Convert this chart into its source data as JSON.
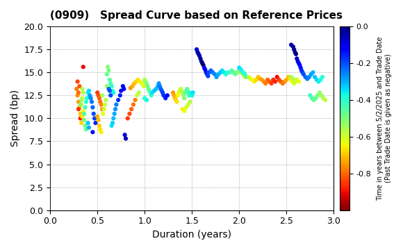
{
  "title": "(0909)   Spread Curve based on Reference Prices",
  "xlabel": "Duration (years)",
  "ylabel": "Spread (bp)",
  "colorbar_label": "Time in years between 5/2/2025 and Trade Date\n(Past Trade Date is given as negative)",
  "xlim": [
    0.0,
    3.0
  ],
  "ylim": [
    0.0,
    20.0
  ],
  "yticks": [
    0.0,
    2.5,
    5.0,
    7.5,
    10.0,
    12.5,
    15.0,
    17.5,
    20.0
  ],
  "xticks": [
    0.0,
    0.5,
    1.0,
    1.5,
    2.0,
    2.5,
    3.0
  ],
  "cmap": "jet_r",
  "vmin": -1.0,
  "vmax": 0.0,
  "scatter_size": 12,
  "points": [
    [
      0.28,
      13.2,
      -0.78
    ],
    [
      0.29,
      12.5,
      -0.76
    ],
    [
      0.3,
      11.8,
      -0.74
    ],
    [
      0.31,
      11.2,
      -0.72
    ],
    [
      0.3,
      12.8,
      -0.8
    ],
    [
      0.32,
      10.5,
      -0.7
    ],
    [
      0.31,
      13.5,
      -0.82
    ],
    [
      0.29,
      14.0,
      -0.84
    ],
    [
      0.3,
      11.0,
      -0.86
    ],
    [
      0.32,
      10.0,
      -0.88
    ],
    [
      0.33,
      9.5,
      -0.68
    ],
    [
      0.34,
      10.2,
      -0.66
    ],
    [
      0.35,
      10.8,
      -0.64
    ],
    [
      0.33,
      11.5,
      -0.62
    ],
    [
      0.34,
      12.2,
      -0.6
    ],
    [
      0.35,
      12.8,
      -0.58
    ],
    [
      0.34,
      13.2,
      -0.56
    ],
    [
      0.33,
      12.0,
      -0.54
    ],
    [
      0.32,
      11.5,
      -0.52
    ],
    [
      0.35,
      15.6,
      -0.9
    ],
    [
      0.36,
      9.8,
      -0.5
    ],
    [
      0.37,
      9.2,
      -0.48
    ],
    [
      0.38,
      8.8,
      -0.46
    ],
    [
      0.36,
      10.5,
      -0.44
    ],
    [
      0.37,
      11.2,
      -0.42
    ],
    [
      0.38,
      11.8,
      -0.4
    ],
    [
      0.39,
      12.2,
      -0.38
    ],
    [
      0.4,
      12.8,
      -0.36
    ],
    [
      0.41,
      13.0,
      -0.34
    ],
    [
      0.4,
      9.5,
      -0.32
    ],
    [
      0.41,
      9.0,
      -0.3
    ],
    [
      0.42,
      12.5,
      -0.28
    ],
    [
      0.43,
      12.2,
      -0.26
    ],
    [
      0.44,
      11.8,
      -0.24
    ],
    [
      0.45,
      11.2,
      -0.22
    ],
    [
      0.46,
      10.5,
      -0.2
    ],
    [
      0.47,
      10.0,
      -0.18
    ],
    [
      0.48,
      9.5,
      -0.16
    ],
    [
      0.45,
      8.5,
      -0.14
    ],
    [
      0.5,
      12.8,
      -0.85
    ],
    [
      0.51,
      12.5,
      -0.83
    ],
    [
      0.52,
      12.2,
      -0.81
    ],
    [
      0.53,
      11.8,
      -0.79
    ],
    [
      0.54,
      11.5,
      -0.77
    ],
    [
      0.55,
      11.0,
      -0.75
    ],
    [
      0.5,
      10.2,
      -0.73
    ],
    [
      0.51,
      9.8,
      -0.71
    ],
    [
      0.52,
      9.2,
      -0.69
    ],
    [
      0.53,
      8.8,
      -0.67
    ],
    [
      0.54,
      8.5,
      -0.65
    ],
    [
      0.56,
      10.5,
      -0.63
    ],
    [
      0.57,
      11.0,
      -0.61
    ],
    [
      0.58,
      11.5,
      -0.59
    ],
    [
      0.59,
      12.0,
      -0.57
    ],
    [
      0.55,
      12.5,
      -0.55
    ],
    [
      0.6,
      13.5,
      -0.53
    ],
    [
      0.61,
      15.6,
      -0.51
    ],
    [
      0.62,
      15.2,
      -0.49
    ],
    [
      0.6,
      14.8,
      -0.47
    ],
    [
      0.63,
      14.2,
      -0.45
    ],
    [
      0.64,
      13.8,
      -0.43
    ],
    [
      0.65,
      13.5,
      -0.41
    ],
    [
      0.66,
      13.0,
      -0.39
    ],
    [
      0.67,
      12.8,
      -0.37
    ],
    [
      0.65,
      9.2,
      -0.35
    ],
    [
      0.66,
      9.5,
      -0.33
    ],
    [
      0.67,
      10.0,
      -0.31
    ],
    [
      0.68,
      10.5,
      -0.29
    ],
    [
      0.69,
      11.0,
      -0.27
    ],
    [
      0.62,
      13.2,
      -0.23
    ],
    [
      0.63,
      13.0,
      -0.21
    ],
    [
      0.64,
      12.5,
      -0.19
    ],
    [
      0.7,
      11.5,
      -0.25
    ],
    [
      0.72,
      12.0,
      -0.17
    ],
    [
      0.74,
      12.5,
      -0.15
    ],
    [
      0.75,
      13.0,
      -0.13
    ],
    [
      0.77,
      13.5,
      -0.11
    ],
    [
      0.78,
      13.2,
      -0.09
    ],
    [
      0.79,
      8.2,
      -0.07
    ],
    [
      0.8,
      7.8,
      -0.05
    ],
    [
      0.82,
      10.0,
      -0.85
    ],
    [
      0.84,
      10.5,
      -0.83
    ],
    [
      0.86,
      11.0,
      -0.81
    ],
    [
      0.88,
      11.5,
      -0.79
    ],
    [
      0.9,
      12.0,
      -0.77
    ],
    [
      0.85,
      13.3,
      -0.75
    ],
    [
      0.87,
      13.5,
      -0.73
    ],
    [
      0.89,
      13.8,
      -0.71
    ],
    [
      0.91,
      14.0,
      -0.69
    ],
    [
      0.93,
      14.2,
      -0.67
    ],
    [
      0.95,
      14.0,
      -0.65
    ],
    [
      0.97,
      13.8,
      -0.63
    ],
    [
      0.99,
      13.5,
      -0.61
    ],
    [
      0.92,
      12.5,
      -0.59
    ],
    [
      0.94,
      12.8,
      -0.57
    ],
    [
      1.0,
      14.2,
      -0.55
    ],
    [
      1.01,
      14.0,
      -0.53
    ],
    [
      1.02,
      13.8,
      -0.51
    ],
    [
      1.03,
      13.5,
      -0.49
    ],
    [
      1.04,
      13.2,
      -0.47
    ],
    [
      1.05,
      13.0,
      -0.45
    ],
    [
      1.06,
      12.8,
      -0.43
    ],
    [
      1.07,
      12.5,
      -0.41
    ],
    [
      1.0,
      12.2,
      -0.39
    ],
    [
      1.02,
      12.0,
      -0.37
    ],
    [
      1.08,
      12.8,
      -0.35
    ],
    [
      1.1,
      13.0,
      -0.33
    ],
    [
      1.12,
      13.2,
      -0.31
    ],
    [
      1.14,
      13.5,
      -0.29
    ],
    [
      1.15,
      13.8,
      -0.27
    ],
    [
      1.16,
      13.5,
      -0.25
    ],
    [
      1.17,
      13.2,
      -0.23
    ],
    [
      1.18,
      13.0,
      -0.21
    ],
    [
      1.19,
      12.8,
      -0.19
    ],
    [
      1.2,
      12.5,
      -0.17
    ],
    [
      1.22,
      12.2,
      -0.15
    ],
    [
      1.24,
      12.5,
      -0.13
    ],
    [
      1.3,
      12.8,
      -0.75
    ],
    [
      1.31,
      12.5,
      -0.73
    ],
    [
      1.32,
      12.2,
      -0.71
    ],
    [
      1.33,
      12.0,
      -0.69
    ],
    [
      1.34,
      11.8,
      -0.67
    ],
    [
      1.35,
      12.5,
      -0.65
    ],
    [
      1.36,
      12.8,
      -0.63
    ],
    [
      1.37,
      13.0,
      -0.61
    ],
    [
      1.38,
      13.2,
      -0.59
    ],
    [
      1.39,
      13.0,
      -0.57
    ],
    [
      1.4,
      12.8,
      -0.55
    ],
    [
      1.41,
      12.5,
      -0.53
    ],
    [
      1.42,
      12.2,
      -0.51
    ],
    [
      1.43,
      12.8,
      -0.49
    ],
    [
      1.44,
      13.0,
      -0.47
    ],
    [
      1.45,
      13.2,
      -0.45
    ],
    [
      1.46,
      12.8,
      -0.43
    ],
    [
      1.47,
      12.5,
      -0.41
    ],
    [
      1.48,
      12.8,
      -0.39
    ],
    [
      1.4,
      11.0,
      -0.65
    ],
    [
      1.42,
      10.8,
      -0.63
    ],
    [
      1.44,
      11.2,
      -0.61
    ],
    [
      1.46,
      11.5,
      -0.59
    ],
    [
      1.48,
      11.8,
      -0.57
    ],
    [
      1.5,
      12.5,
      -0.37
    ],
    [
      1.51,
      12.8,
      -0.35
    ],
    [
      1.55,
      17.5,
      -0.08
    ],
    [
      1.56,
      17.2,
      -0.06
    ],
    [
      1.57,
      17.0,
      -0.05
    ],
    [
      1.58,
      16.8,
      -0.04
    ],
    [
      1.59,
      16.5,
      -0.03
    ],
    [
      1.6,
      16.2,
      -0.02
    ],
    [
      1.61,
      16.0,
      -0.01
    ],
    [
      1.62,
      15.8,
      -0.0
    ],
    [
      1.63,
      15.5,
      -0.1
    ],
    [
      1.64,
      15.3,
      -0.12
    ],
    [
      1.65,
      15.0,
      -0.14
    ],
    [
      1.66,
      14.8,
      -0.16
    ],
    [
      1.67,
      14.6,
      -0.18
    ],
    [
      1.68,
      15.0,
      -0.2
    ],
    [
      1.7,
      15.2,
      -0.22
    ],
    [
      1.72,
      15.0,
      -0.24
    ],
    [
      1.74,
      14.8,
      -0.26
    ],
    [
      1.76,
      14.5,
      -0.28
    ],
    [
      1.78,
      14.8,
      -0.3
    ],
    [
      1.8,
      15.0,
      -0.32
    ],
    [
      1.82,
      15.2,
      -0.34
    ],
    [
      1.84,
      15.0,
      -0.36
    ],
    [
      1.86,
      14.8,
      -0.38
    ],
    [
      1.88,
      15.0,
      -0.4
    ],
    [
      1.9,
      15.0,
      -0.42
    ],
    [
      1.92,
      15.2,
      -0.44
    ],
    [
      1.94,
      15.0,
      -0.46
    ],
    [
      1.96,
      14.8,
      -0.48
    ],
    [
      1.98,
      15.0,
      -0.5
    ],
    [
      2.0,
      15.2,
      -0.52
    ],
    [
      2.02,
      15.0,
      -0.54
    ],
    [
      2.04,
      14.8,
      -0.56
    ],
    [
      2.06,
      14.5,
      -0.58
    ],
    [
      2.0,
      15.5,
      -0.34
    ],
    [
      2.02,
      15.3,
      -0.36
    ],
    [
      2.04,
      15.0,
      -0.38
    ],
    [
      2.06,
      14.8,
      -0.4
    ],
    [
      2.08,
      14.5,
      -0.42
    ],
    [
      2.1,
      14.5,
      -0.6
    ],
    [
      2.12,
      14.3,
      -0.62
    ],
    [
      2.14,
      14.2,
      -0.64
    ],
    [
      2.16,
      14.0,
      -0.66
    ],
    [
      2.18,
      14.2,
      -0.68
    ],
    [
      2.2,
      14.5,
      -0.7
    ],
    [
      2.22,
      14.3,
      -0.72
    ],
    [
      2.24,
      14.2,
      -0.74
    ],
    [
      2.26,
      14.0,
      -0.76
    ],
    [
      2.28,
      13.8,
      -0.78
    ],
    [
      2.3,
      14.2,
      -0.8
    ],
    [
      2.32,
      14.0,
      -0.82
    ],
    [
      2.34,
      13.8,
      -0.84
    ],
    [
      2.36,
      14.2,
      -0.86
    ],
    [
      2.38,
      14.0,
      -0.88
    ],
    [
      2.4,
      14.5,
      -0.9
    ],
    [
      2.42,
      14.2,
      -0.85
    ],
    [
      2.44,
      14.0,
      -0.82
    ],
    [
      2.46,
      13.8,
      -0.79
    ],
    [
      2.48,
      14.0,
      -0.76
    ],
    [
      2.5,
      14.2,
      -0.73
    ],
    [
      2.52,
      14.5,
      -0.7
    ],
    [
      2.54,
      14.3,
      -0.67
    ],
    [
      2.56,
      14.0,
      -0.64
    ],
    [
      2.58,
      13.8,
      -0.61
    ],
    [
      2.55,
      18.0,
      -0.04
    ],
    [
      2.57,
      17.8,
      -0.03
    ],
    [
      2.58,
      17.5,
      -0.02
    ],
    [
      2.59,
      17.2,
      -0.01
    ],
    [
      2.6,
      17.0,
      -0.0
    ],
    [
      2.61,
      16.5,
      -0.06
    ],
    [
      2.62,
      16.2,
      -0.08
    ],
    [
      2.63,
      16.0,
      -0.1
    ],
    [
      2.64,
      15.8,
      -0.12
    ],
    [
      2.65,
      15.5,
      -0.14
    ],
    [
      2.66,
      15.2,
      -0.16
    ],
    [
      2.67,
      15.0,
      -0.18
    ],
    [
      2.68,
      14.8,
      -0.2
    ],
    [
      2.55,
      14.5,
      -0.55
    ],
    [
      2.57,
      14.3,
      -0.57
    ],
    [
      2.59,
      14.0,
      -0.59
    ],
    [
      2.61,
      14.2,
      -0.61
    ],
    [
      2.63,
      14.0,
      -0.63
    ],
    [
      2.7,
      14.5,
      -0.22
    ],
    [
      2.72,
      14.3,
      -0.24
    ],
    [
      2.74,
      14.5,
      -0.26
    ],
    [
      2.76,
      14.8,
      -0.28
    ],
    [
      2.78,
      15.0,
      -0.3
    ],
    [
      2.8,
      14.5,
      -0.32
    ],
    [
      2.82,
      14.2,
      -0.34
    ],
    [
      2.84,
      14.0,
      -0.36
    ],
    [
      2.86,
      14.2,
      -0.38
    ],
    [
      2.88,
      14.5,
      -0.4
    ],
    [
      2.75,
      12.5,
      -0.42
    ],
    [
      2.77,
      12.2,
      -0.44
    ],
    [
      2.79,
      12.0,
      -0.46
    ],
    [
      2.81,
      12.2,
      -0.48
    ],
    [
      2.83,
      12.5,
      -0.5
    ],
    [
      2.85,
      12.8,
      -0.52
    ],
    [
      2.87,
      12.5,
      -0.54
    ],
    [
      2.89,
      12.2,
      -0.56
    ],
    [
      2.91,
      12.0,
      -0.58
    ]
  ]
}
